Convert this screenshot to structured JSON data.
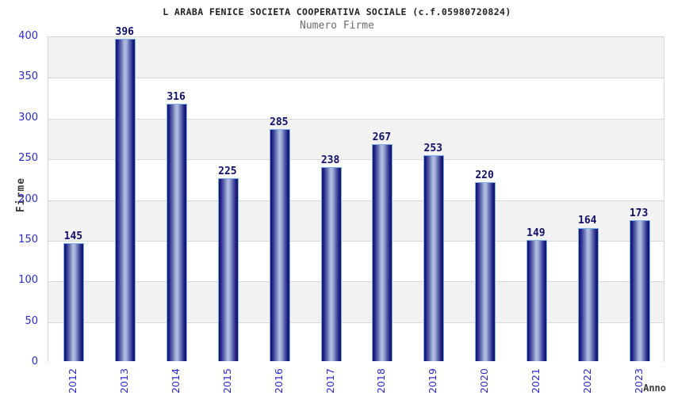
{
  "chart_data": {
    "type": "bar",
    "title": "L ARABA FENICE SOCIETA COOPERATIVA SOCIALE (c.f.05980720824)",
    "subtitle": "Numero Firme",
    "xlabel": "Anno",
    "ylabel": "Firme",
    "categories": [
      "2012",
      "2013",
      "2014",
      "2015",
      "2016",
      "2017",
      "2018",
      "2019",
      "2020",
      "2021",
      "2022",
      "2023"
    ],
    "values": [
      145,
      396,
      316,
      225,
      285,
      238,
      267,
      253,
      220,
      149,
      164,
      173
    ],
    "ylim": [
      0,
      400
    ],
    "ytick_step": 50,
    "grid": true,
    "legend": "none",
    "colors": {
      "title": "#222222",
      "subtitle": "#6e6e6e",
      "axis_title": "#3c3c3c",
      "tick_label_blue": "#2a2ad4",
      "value_label_navy": "#10106a",
      "band_gray": "#f2f2f2",
      "gridline": "#d9d9d9",
      "bar_edge_navy": "#14146b",
      "bar_highlight": "#b4bfe2",
      "bar_border_lightblue": "#7db0e8"
    }
  }
}
